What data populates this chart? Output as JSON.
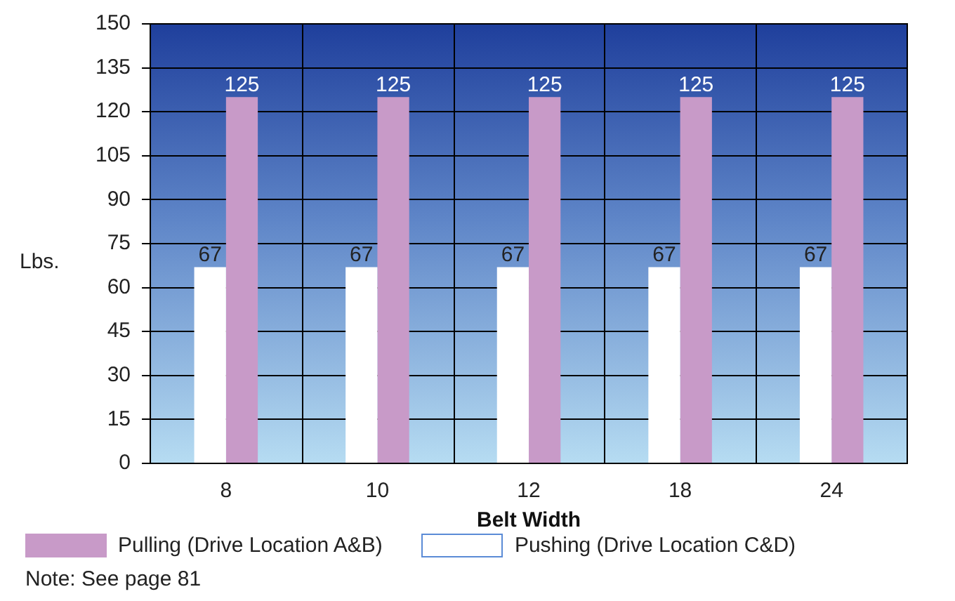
{
  "chart_data": {
    "type": "bar",
    "xlabel": "Belt Width",
    "ylabel": "Lbs.",
    "categories": [
      "8",
      "10",
      "12",
      "18",
      "24"
    ],
    "series": [
      {
        "name": "Pushing (Drive Location C&D)",
        "color": "#ffffff",
        "values": [
          67,
          67,
          67,
          67,
          67
        ]
      },
      {
        "name": "Pulling (Drive Location A&B)",
        "color": "#c89ac8",
        "values": [
          125,
          125,
          125,
          125,
          125
        ]
      }
    ],
    "ylim": [
      0,
      150
    ],
    "yticks": [
      0,
      15,
      30,
      45,
      60,
      75,
      90,
      105,
      120,
      135,
      150
    ],
    "grid": true,
    "data_labels": true,
    "legend": "bottom",
    "annotations": [
      "Note: See page 81"
    ]
  }
}
